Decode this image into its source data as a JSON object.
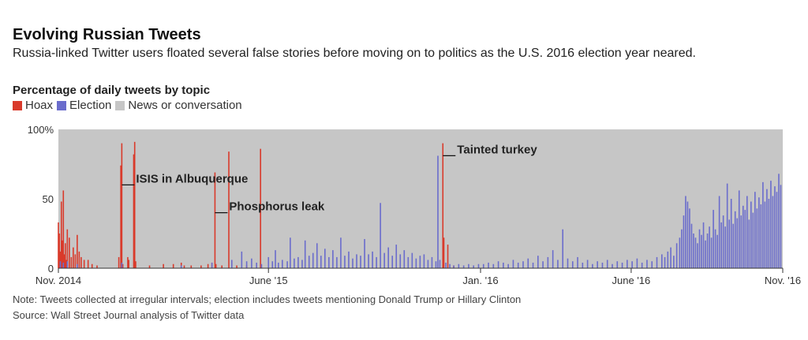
{
  "header": {
    "title": "Evolving Russian Tweets",
    "subtitle": "Russia-linked Twitter users floated several false stories before moving on to politics as the U.S. 2016 election year neared."
  },
  "footer": {
    "note": "Note: Tweets collected at irregular intervals; election includes tweets mentioning Donald Trump or Hillary Clinton",
    "source": "Source: Wall Street Journal analysis of Twitter data"
  },
  "chart_data": {
    "type": "bar",
    "title": "Percentage of daily tweets by topic",
    "xlabel": "",
    "ylabel": "",
    "x_range": [
      "2014-11-01",
      "2016-11-01"
    ],
    "ylim": [
      0,
      100
    ],
    "y_ticks": [
      {
        "value": 0,
        "label": "0"
      },
      {
        "value": 50,
        "label": "50"
      },
      {
        "value": 100,
        "label": "100%"
      }
    ],
    "x_ticks": [
      {
        "date": "2014-11-01",
        "label": "Nov. 2014"
      },
      {
        "date": "2015-06-01",
        "label": "June '15"
      },
      {
        "date": "2016-01-01",
        "label": "Jan. '16"
      },
      {
        "date": "2016-06-01",
        "label": "June '16"
      },
      {
        "date": "2016-11-01",
        "label": "Nov. '16"
      }
    ],
    "legend_position": "top-left",
    "grid": false,
    "colors": {
      "hoax": "#d93a2b",
      "election": "#6a6ccc",
      "news": "#c6c6c6"
    },
    "series": [
      {
        "name": "Hoax",
        "key": "hoax",
        "points": [
          [
            "2014-11-01",
            33
          ],
          [
            "2014-11-02",
            25
          ],
          [
            "2014-11-03",
            12
          ],
          [
            "2014-11-04",
            48
          ],
          [
            "2014-11-05",
            20
          ],
          [
            "2014-11-06",
            56
          ],
          [
            "2014-11-07",
            10
          ],
          [
            "2014-11-08",
            18
          ],
          [
            "2014-11-09",
            6
          ],
          [
            "2014-11-10",
            28
          ],
          [
            "2014-11-12",
            22
          ],
          [
            "2014-11-14",
            8
          ],
          [
            "2014-11-16",
            15
          ],
          [
            "2014-11-18",
            10
          ],
          [
            "2014-11-20",
            24
          ],
          [
            "2014-11-22",
            12
          ],
          [
            "2014-11-24",
            8
          ],
          [
            "2014-11-27",
            6
          ],
          [
            "2014-12-01",
            6
          ],
          [
            "2014-12-05",
            3
          ],
          [
            "2014-12-10",
            2
          ],
          [
            "2015-01-01",
            8
          ],
          [
            "2015-01-03",
            74
          ],
          [
            "2015-01-04",
            90
          ],
          [
            "2015-01-05",
            3
          ],
          [
            "2015-01-10",
            8
          ],
          [
            "2015-01-11",
            6
          ],
          [
            "2015-01-16",
            82
          ],
          [
            "2015-01-17",
            91
          ],
          [
            "2015-01-18",
            5
          ],
          [
            "2015-02-01",
            2
          ],
          [
            "2015-02-15",
            3
          ],
          [
            "2015-02-25",
            3
          ],
          [
            "2015-03-05",
            4
          ],
          [
            "2015-03-08",
            2
          ],
          [
            "2015-03-15",
            2
          ],
          [
            "2015-03-25",
            2
          ],
          [
            "2015-04-01",
            3
          ],
          [
            "2015-04-05",
            4
          ],
          [
            "2015-04-08",
            69
          ],
          [
            "2015-04-09",
            3
          ],
          [
            "2015-04-15",
            2
          ],
          [
            "2015-04-22",
            84
          ],
          [
            "2015-04-30",
            2
          ],
          [
            "2015-05-10",
            2
          ],
          [
            "2015-05-24",
            86
          ],
          [
            "2015-06-05",
            1
          ],
          [
            "2015-07-01",
            1
          ],
          [
            "2015-11-24",
            90
          ],
          [
            "2015-11-25",
            22
          ],
          [
            "2015-11-29",
            17
          ],
          [
            "2015-12-05",
            2
          ]
        ]
      },
      {
        "name": "Election",
        "key": "election",
        "points": [
          [
            "2014-11-03",
            5
          ],
          [
            "2014-11-06",
            4
          ],
          [
            "2014-11-10",
            5
          ],
          [
            "2014-11-20",
            3
          ],
          [
            "2015-01-04",
            4
          ],
          [
            "2015-03-05",
            2
          ],
          [
            "2015-04-05",
            4
          ],
          [
            "2015-04-25",
            6
          ],
          [
            "2015-05-05",
            12
          ],
          [
            "2015-05-10",
            5
          ],
          [
            "2015-05-15",
            7
          ],
          [
            "2015-05-20",
            4
          ],
          [
            "2015-05-25",
            3
          ],
          [
            "2015-06-01",
            8
          ],
          [
            "2015-06-05",
            5
          ],
          [
            "2015-06-08",
            13
          ],
          [
            "2015-06-11",
            4
          ],
          [
            "2015-06-15",
            6
          ],
          [
            "2015-06-20",
            5
          ],
          [
            "2015-06-23",
            22
          ],
          [
            "2015-06-27",
            7
          ],
          [
            "2015-07-01",
            8
          ],
          [
            "2015-07-05",
            6
          ],
          [
            "2015-07-08",
            20
          ],
          [
            "2015-07-12",
            9
          ],
          [
            "2015-07-16",
            11
          ],
          [
            "2015-07-20",
            18
          ],
          [
            "2015-07-24",
            9
          ],
          [
            "2015-07-28",
            14
          ],
          [
            "2015-08-01",
            8
          ],
          [
            "2015-08-05",
            13
          ],
          [
            "2015-08-09",
            8
          ],
          [
            "2015-08-13",
            22
          ],
          [
            "2015-08-17",
            9
          ],
          [
            "2015-08-21",
            12
          ],
          [
            "2015-08-25",
            7
          ],
          [
            "2015-08-29",
            10
          ],
          [
            "2015-09-02",
            9
          ],
          [
            "2015-09-06",
            21
          ],
          [
            "2015-09-10",
            10
          ],
          [
            "2015-09-14",
            12
          ],
          [
            "2015-09-18",
            8
          ],
          [
            "2015-09-22",
            47
          ],
          [
            "2015-09-26",
            11
          ],
          [
            "2015-09-30",
            15
          ],
          [
            "2015-10-04",
            9
          ],
          [
            "2015-10-08",
            17
          ],
          [
            "2015-10-12",
            10
          ],
          [
            "2015-10-16",
            13
          ],
          [
            "2015-10-20",
            8
          ],
          [
            "2015-10-24",
            11
          ],
          [
            "2015-10-28",
            7
          ],
          [
            "2015-11-01",
            9
          ],
          [
            "2015-11-05",
            10
          ],
          [
            "2015-11-09",
            6
          ],
          [
            "2015-11-13",
            8
          ],
          [
            "2015-11-17",
            5
          ],
          [
            "2015-11-19",
            81
          ],
          [
            "2015-11-21",
            6
          ],
          [
            "2015-11-27",
            4
          ],
          [
            "2015-12-01",
            3
          ],
          [
            "2015-12-05",
            2
          ],
          [
            "2015-12-10",
            3
          ],
          [
            "2015-12-15",
            2
          ],
          [
            "2015-12-20",
            3
          ],
          [
            "2015-12-25",
            2
          ],
          [
            "2015-12-30",
            3
          ],
          [
            "2016-01-04",
            3
          ],
          [
            "2016-01-09",
            4
          ],
          [
            "2016-01-14",
            3
          ],
          [
            "2016-01-19",
            5
          ],
          [
            "2016-01-24",
            4
          ],
          [
            "2016-01-29",
            3
          ],
          [
            "2016-02-03",
            6
          ],
          [
            "2016-02-08",
            4
          ],
          [
            "2016-02-13",
            5
          ],
          [
            "2016-02-18",
            7
          ],
          [
            "2016-02-23",
            4
          ],
          [
            "2016-02-28",
            9
          ],
          [
            "2016-03-04",
            5
          ],
          [
            "2016-03-09",
            8
          ],
          [
            "2016-03-14",
            13
          ],
          [
            "2016-03-19",
            6
          ],
          [
            "2016-03-24",
            28
          ],
          [
            "2016-03-29",
            7
          ],
          [
            "2016-04-03",
            5
          ],
          [
            "2016-04-08",
            8
          ],
          [
            "2016-04-13",
            4
          ],
          [
            "2016-04-18",
            6
          ],
          [
            "2016-04-23",
            3
          ],
          [
            "2016-04-28",
            5
          ],
          [
            "2016-05-03",
            4
          ],
          [
            "2016-05-08",
            6
          ],
          [
            "2016-05-13",
            3
          ],
          [
            "2016-05-18",
            5
          ],
          [
            "2016-05-23",
            4
          ],
          [
            "2016-05-28",
            6
          ],
          [
            "2016-06-02",
            5
          ],
          [
            "2016-06-07",
            7
          ],
          [
            "2016-06-12",
            4
          ],
          [
            "2016-06-17",
            6
          ],
          [
            "2016-06-22",
            5
          ],
          [
            "2016-06-27",
            8
          ],
          [
            "2016-07-02",
            10
          ],
          [
            "2016-07-05",
            8
          ],
          [
            "2016-07-08",
            12
          ],
          [
            "2016-07-11",
            15
          ],
          [
            "2016-07-14",
            9
          ],
          [
            "2016-07-17",
            18
          ],
          [
            "2016-07-20",
            22
          ],
          [
            "2016-07-22",
            28
          ],
          [
            "2016-07-24",
            38
          ],
          [
            "2016-07-26",
            52
          ],
          [
            "2016-07-28",
            48
          ],
          [
            "2016-07-30",
            43
          ],
          [
            "2016-08-01",
            32
          ],
          [
            "2016-08-03",
            25
          ],
          [
            "2016-08-05",
            22
          ],
          [
            "2016-08-07",
            18
          ],
          [
            "2016-08-09",
            28
          ],
          [
            "2016-08-11",
            24
          ],
          [
            "2016-08-13",
            33
          ],
          [
            "2016-08-15",
            20
          ],
          [
            "2016-08-17",
            25
          ],
          [
            "2016-08-19",
            30
          ],
          [
            "2016-08-21",
            22
          ],
          [
            "2016-08-23",
            42
          ],
          [
            "2016-08-25",
            28
          ],
          [
            "2016-08-27",
            24
          ],
          [
            "2016-08-29",
            52
          ],
          [
            "2016-08-31",
            33
          ],
          [
            "2016-09-02",
            38
          ],
          [
            "2016-09-04",
            30
          ],
          [
            "2016-09-06",
            61
          ],
          [
            "2016-09-08",
            35
          ],
          [
            "2016-09-10",
            50
          ],
          [
            "2016-09-12",
            32
          ],
          [
            "2016-09-14",
            41
          ],
          [
            "2016-09-16",
            36
          ],
          [
            "2016-09-18",
            56
          ],
          [
            "2016-09-20",
            38
          ],
          [
            "2016-09-22",
            45
          ],
          [
            "2016-09-24",
            42
          ],
          [
            "2016-09-26",
            52
          ],
          [
            "2016-09-28",
            35
          ],
          [
            "2016-09-30",
            48
          ],
          [
            "2016-10-02",
            40
          ],
          [
            "2016-10-04",
            55
          ],
          [
            "2016-10-06",
            43
          ],
          [
            "2016-10-08",
            51
          ],
          [
            "2016-10-10",
            46
          ],
          [
            "2016-10-12",
            62
          ],
          [
            "2016-10-14",
            48
          ],
          [
            "2016-10-16",
            57
          ],
          [
            "2016-10-18",
            50
          ],
          [
            "2016-10-20",
            63
          ],
          [
            "2016-10-22",
            52
          ],
          [
            "2016-10-24",
            59
          ],
          [
            "2016-10-26",
            55
          ],
          [
            "2016-10-28",
            68
          ],
          [
            "2016-10-30",
            60
          ]
        ]
      }
    ],
    "annotations": [
      {
        "label": "ISIS in Albuquerque",
        "date": "2015-01-04",
        "y": 60
      },
      {
        "label": "Phosphorus leak",
        "date": "2015-04-08",
        "y": 40
      },
      {
        "label": "Tainted turkey",
        "date": "2015-11-24",
        "y": 81
      }
    ]
  }
}
